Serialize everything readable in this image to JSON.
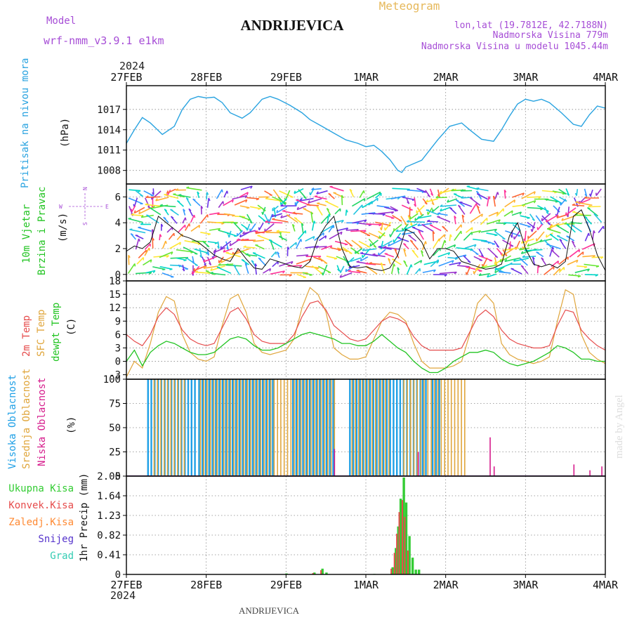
{
  "header": {
    "model_label": "Model",
    "model_name": "wrf-nmm_v3.9.1  e1km",
    "station": "ANDRIJEVICA",
    "product": "Meteogram",
    "lonlat": "lon,lat (19.7812E, 42.7188N)",
    "elevation": "Nadmorska Visina 779m",
    "model_elevation": "Nadmorska Visina u modelu 1045.44m",
    "footer_station": "ANDRIJEVICA",
    "watermark": "made by Angel"
  },
  "colors": {
    "pressure": "#29a3e0",
    "temp2m": "#e64c4c",
    "sfc": "#e0a63c",
    "dew": "#22c422",
    "high_cloud": "#1fa0e6",
    "mid_cloud": "#e0a63c",
    "low_cloud": "#d61c8c",
    "total_rain": "#33cc33",
    "conv_rain": "#e64c4c",
    "frz_rain": "#ff8a33",
    "snow": "#5533cc",
    "grad": "#33ccb3"
  },
  "time_axis": {
    "year": "2024",
    "labels": [
      "27FEB",
      "28FEB",
      "29FEB",
      "1MAR",
      "2MAR",
      "3MAR",
      "4MAR"
    ]
  },
  "panels": {
    "pressure": {
      "title": "Pritisak na nivou mora",
      "unit": "(hPa)"
    },
    "wind": {
      "title1": "10m Vjetar",
      "title2": "Brzina i Pravac",
      "unit": "(m/s)",
      "compass": {
        "n": "N",
        "s": "S",
        "e": "E",
        "w": "W"
      }
    },
    "temp": {
      "t1": "2m Temp",
      "t2": "SFC Temp",
      "t3": "dewpt Temp",
      "unit": "(C)"
    },
    "cloud": {
      "t1": "Visoka Oblacnost",
      "t2": "Srednja Oblacnost",
      "t3": "Niska Oblacnost",
      "unit": "(%)"
    },
    "precip": {
      "title": "1hr Precip (mm)",
      "legend": [
        "Ukupna Kisa",
        "Konvek.Kisa",
        "Zaledj.Kisa",
        "Snijeg",
        "Grad"
      ]
    }
  },
  "chart_data": [
    {
      "type": "line",
      "name": "pressure",
      "x_unit": "days since 27FEB 00Z",
      "ylim": [
        1006,
        1020.5
      ],
      "yticks": [
        1008,
        1011,
        1014,
        1017
      ],
      "grid": true,
      "series": [
        {
          "name": "Pritisak na nivou mora",
          "x": [
            0,
            0.1,
            0.2,
            0.3,
            0.45,
            0.6,
            0.7,
            0.8,
            0.9,
            1.0,
            1.1,
            1.2,
            1.3,
            1.45,
            1.55,
            1.7,
            1.8,
            1.9,
            2.05,
            2.2,
            2.3,
            2.45,
            2.6,
            2.75,
            2.9,
            3.0,
            3.1,
            3.2,
            3.3,
            3.4,
            3.45,
            3.5,
            3.6,
            3.7,
            3.8,
            3.9,
            4.05,
            4.2,
            4.3,
            4.45,
            4.6,
            4.7,
            4.8,
            4.9,
            5.0,
            5.1,
            5.2,
            5.3,
            5.45,
            5.6,
            5.7,
            5.8,
            5.9,
            6.0
          ],
          "y": [
            1012.0,
            1014.0,
            1015.8,
            1015.0,
            1013.3,
            1014.5,
            1017.0,
            1018.5,
            1018.9,
            1018.7,
            1018.8,
            1018.0,
            1016.5,
            1015.7,
            1016.5,
            1018.5,
            1018.9,
            1018.5,
            1017.6,
            1016.5,
            1015.5,
            1014.5,
            1013.5,
            1012.5,
            1012.0,
            1011.5,
            1011.7,
            1010.8,
            1009.6,
            1008.0,
            1007.7,
            1008.5,
            1009.0,
            1009.5,
            1011.0,
            1012.5,
            1014.5,
            1015.0,
            1014.0,
            1012.6,
            1012.3,
            1014.0,
            1016.0,
            1017.8,
            1018.5,
            1018.2,
            1018.5,
            1018.0,
            1016.5,
            1014.8,
            1014.5,
            1016.2,
            1017.5,
            1017.2
          ]
        }
      ]
    },
    {
      "type": "line",
      "name": "wind",
      "x_unit": "days since 27FEB 00Z",
      "ylim": [
        -0.5,
        7
      ],
      "yticks": [
        0,
        2,
        4,
        6
      ],
      "grid": true,
      "series": [
        {
          "name": "wind speed",
          "x": [
            0,
            0.1,
            0.2,
            0.3,
            0.4,
            0.5,
            0.6,
            0.7,
            0.8,
            0.9,
            1.0,
            1.1,
            1.2,
            1.3,
            1.4,
            1.5,
            1.6,
            1.7,
            1.8,
            1.9,
            2.0,
            2.1,
            2.2,
            2.3,
            2.4,
            2.5,
            2.6,
            2.7,
            2.8,
            2.9,
            3.0,
            3.1,
            3.2,
            3.3,
            3.4,
            3.5,
            3.6,
            3.7,
            3.8,
            3.9,
            4.0,
            4.1,
            4.2,
            4.3,
            4.4,
            4.5,
            4.6,
            4.7,
            4.8,
            4.9,
            5.0,
            5.1,
            5.2,
            5.3,
            5.4,
            5.5,
            5.6,
            5.7,
            5.8,
            5.9,
            6.0
          ],
          "y": [
            1.8,
            2.2,
            2.0,
            2.5,
            4.5,
            4.0,
            3.5,
            3.0,
            2.8,
            2.5,
            2.0,
            1.5,
            1.2,
            1.0,
            2.0,
            1.2,
            0.5,
            0.4,
            1.2,
            1.0,
            0.8,
            0.6,
            0.5,
            1.0,
            2.8,
            3.8,
            4.5,
            2.0,
            0.6,
            0.5,
            0.6,
            0.4,
            0.3,
            0.5,
            1.5,
            3.5,
            3.2,
            2.5,
            1.2,
            2.0,
            2.0,
            1.8,
            1.0,
            0.8,
            0.6,
            0.4,
            0.5,
            0.8,
            3.0,
            4.0,
            2.0,
            0.8,
            0.6,
            0.8,
            0.5,
            1.0,
            4.5,
            5.0,
            3.5,
            1.5,
            0.3
          ]
        }
      ]
    },
    {
      "type": "line",
      "name": "temperature",
      "x_unit": "days since 27FEB 00Z",
      "ylim": [
        -4,
        18
      ],
      "yticks": [
        -3,
        0,
        3,
        6,
        9,
        12,
        15,
        18
      ],
      "grid": true,
      "series": [
        {
          "name": "2m Temp",
          "x": [
            0,
            0.1,
            0.2,
            0.3,
            0.4,
            0.5,
            0.6,
            0.7,
            0.8,
            0.9,
            1.0,
            1.1,
            1.2,
            1.3,
            1.4,
            1.5,
            1.6,
            1.7,
            1.8,
            1.9,
            2.0,
            2.1,
            2.2,
            2.3,
            2.4,
            2.5,
            2.6,
            2.7,
            2.8,
            2.9,
            3.0,
            3.1,
            3.2,
            3.3,
            3.4,
            3.5,
            3.6,
            3.7,
            3.8,
            3.9,
            4.0,
            4.1,
            4.2,
            4.3,
            4.4,
            4.5,
            4.6,
            4.7,
            4.8,
            4.9,
            5.0,
            5.1,
            5.2,
            5.3,
            5.4,
            5.5,
            5.6,
            5.7,
            5.8,
            5.9,
            6.0
          ],
          "y": [
            6,
            4.5,
            3.5,
            6,
            10,
            12,
            10.5,
            7,
            5,
            4,
            3.5,
            4,
            7.5,
            11,
            12,
            9.5,
            6,
            4.5,
            4,
            4,
            4,
            6,
            10,
            13,
            13.5,
            11.5,
            8,
            6.5,
            5,
            4.5,
            5,
            7,
            9,
            10,
            9.5,
            8.5,
            5.5,
            3.5,
            2.5,
            2.5,
            2.5,
            2.5,
            3,
            6.5,
            10,
            11.5,
            10,
            7,
            5,
            4,
            3.5,
            3,
            3,
            3.5,
            8,
            11.5,
            11,
            7,
            5,
            3.5,
            2.5
          ]
        },
        {
          "name": "SFC Temp",
          "x": [
            0,
            0.1,
            0.2,
            0.3,
            0.4,
            0.5,
            0.6,
            0.7,
            0.8,
            0.9,
            1.0,
            1.1,
            1.2,
            1.3,
            1.4,
            1.5,
            1.6,
            1.7,
            1.8,
            1.9,
            2.0,
            2.1,
            2.2,
            2.3,
            2.4,
            2.5,
            2.6,
            2.7,
            2.8,
            2.9,
            3.0,
            3.1,
            3.2,
            3.3,
            3.4,
            3.5,
            3.6,
            3.7,
            3.8,
            3.9,
            4.0,
            4.1,
            4.2,
            4.3,
            4.4,
            4.5,
            4.6,
            4.7,
            4.8,
            4.9,
            5.0,
            5.1,
            5.2,
            5.3,
            5.4,
            5.5,
            5.6,
            5.7,
            5.8,
            5.9,
            6.0
          ],
          "y": [
            -3.5,
            0,
            -1.5,
            4,
            11,
            14.5,
            13.5,
            6,
            2,
            0.5,
            0,
            1,
            8,
            14,
            15,
            11,
            4,
            2,
            1.5,
            2,
            2.5,
            5,
            12,
            16.5,
            15,
            11,
            3,
            1.5,
            0.5,
            0.5,
            1,
            5,
            9,
            11,
            10.5,
            9,
            4,
            0,
            -1.5,
            -1.5,
            -1.5,
            -1,
            0,
            6,
            13,
            15,
            13,
            4,
            1.5,
            0.5,
            0,
            -0.5,
            0,
            1,
            9,
            16,
            15,
            6,
            2,
            0.5,
            -0.5
          ]
        },
        {
          "name": "dewpt Temp",
          "x": [
            0,
            0.1,
            0.2,
            0.3,
            0.4,
            0.5,
            0.6,
            0.7,
            0.8,
            0.9,
            1.0,
            1.1,
            1.2,
            1.3,
            1.4,
            1.5,
            1.6,
            1.7,
            1.8,
            1.9,
            2.0,
            2.1,
            2.2,
            2.3,
            2.4,
            2.5,
            2.6,
            2.7,
            2.8,
            2.9,
            3.0,
            3.1,
            3.2,
            3.3,
            3.4,
            3.5,
            3.6,
            3.7,
            3.8,
            3.9,
            4.0,
            4.1,
            4.2,
            4.3,
            4.4,
            4.5,
            4.6,
            4.7,
            4.8,
            4.9,
            5.0,
            5.1,
            5.2,
            5.3,
            5.4,
            5.5,
            5.6,
            5.7,
            5.8,
            5.9,
            6.0
          ],
          "y": [
            0,
            2.5,
            -1,
            2,
            3.5,
            4.5,
            4,
            3,
            2,
            1.5,
            1.5,
            2,
            3.5,
            5,
            5.5,
            5,
            3.5,
            2.5,
            2.5,
            3,
            4,
            5,
            6,
            6.5,
            6,
            5.5,
            5,
            4,
            4,
            3.5,
            3.5,
            4.5,
            6,
            4.5,
            3,
            2,
            0,
            -1.5,
            -2.5,
            -2.5,
            -1.5,
            0,
            1,
            2,
            2,
            2.5,
            2,
            0.5,
            -0.5,
            -1,
            -0.5,
            0,
            1,
            2,
            3.5,
            3,
            2,
            0.5,
            0.5,
            0,
            0
          ]
        }
      ]
    },
    {
      "type": "bar",
      "name": "cloud",
      "x_unit": "days since 27FEB 00Z",
      "ylim": [
        0,
        100
      ],
      "yticks": [
        0,
        25,
        50,
        75,
        100
      ],
      "grid": true,
      "high_cloud_periods": [
        [
          0.26,
          0.85,
          100
        ],
        [
          0.9,
          3.7,
          100
        ],
        [
          3.7,
          3.95,
          100
        ]
      ],
      "mid_cloud_periods": [
        [
          0.32,
          0.75,
          100
        ],
        [
          0.9,
          2.6,
          100
        ],
        [
          2.8,
          3.3,
          100
        ],
        [
          3.45,
          3.75,
          100
        ],
        [
          3.75,
          4.25,
          100
        ]
      ],
      "high_cloud_gaps": [
        [
          1.85,
          2.05
        ],
        [
          2.6,
          2.78
        ],
        [
          3.75,
          3.8
        ]
      ],
      "low_cloud_events": [
        {
          "x": 2.6,
          "v": 28
        },
        {
          "x": 3.65,
          "v": 25
        },
        {
          "x": 4.55,
          "v": 40
        },
        {
          "x": 4.6,
          "v": 10
        },
        {
          "x": 5.6,
          "v": 12
        },
        {
          "x": 5.8,
          "v": 6
        },
        {
          "x": 5.95,
          "v": 10
        }
      ]
    },
    {
      "type": "bar",
      "name": "precip",
      "x_unit": "days since 27FEB 00Z",
      "ylim": [
        0,
        2.05
      ],
      "yticks": [
        0,
        0.41,
        0.82,
        1.23,
        1.64,
        2.05
      ],
      "ytick_labels": [
        "0",
        "0.41",
        "0.82",
        "1.23",
        "1.64",
        "2.05"
      ],
      "grid": true,
      "series": [
        {
          "name": "Ukupna Kisa",
          "x": [
            2.0,
            2.35,
            2.45,
            2.5,
            3.1,
            3.33,
            3.37,
            3.4,
            3.43,
            3.47,
            3.5,
            3.54,
            3.58,
            3.62,
            3.66
          ],
          "y": [
            0.02,
            0.04,
            0.12,
            0.04,
            0.01,
            0.15,
            0.55,
            1.0,
            1.58,
            2.02,
            1.5,
            0.8,
            0.35,
            0.1,
            0.1
          ]
        },
        {
          "name": "Konvek.Kisa",
          "x": [
            2.35,
            2.45,
            3.33,
            3.37,
            3.4,
            3.43,
            3.47,
            3.5,
            3.54
          ],
          "y": [
            0.03,
            0.09,
            0.12,
            0.45,
            0.85,
            1.3,
            1.55,
            1.2,
            0.5
          ]
        }
      ]
    }
  ]
}
